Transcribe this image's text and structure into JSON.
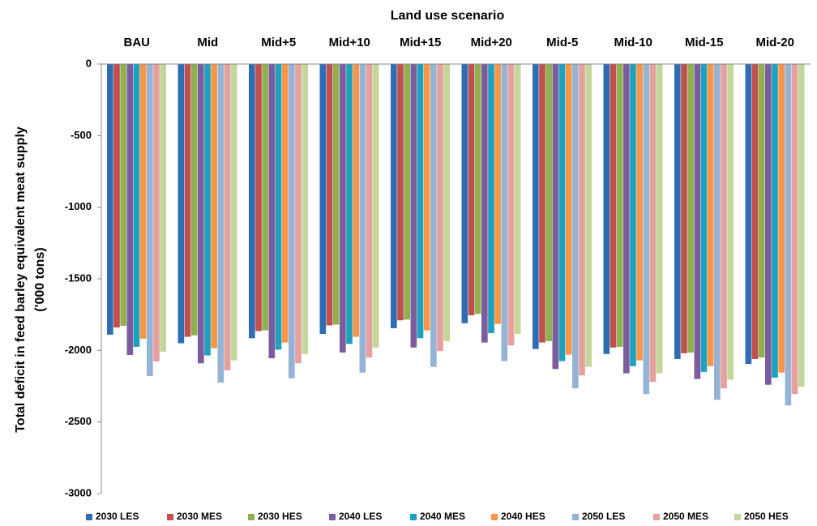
{
  "chart_data": {
    "type": "bar",
    "x_label": "Land use scenario",
    "y_label": [
      "Total deficit in feed barley equivalent meat supply",
      "('000 tons)"
    ],
    "categories": [
      "BAU",
      "Mid",
      "Mid+5",
      "Mid+10",
      "Mid+15",
      "Mid+20",
      "Mid-5",
      "Mid-10",
      "Mid-15",
      "Mid-20"
    ],
    "series": [
      {
        "name": "2030 LES",
        "color": "#2e6db4",
        "values": [
          -1890,
          -1950,
          -1915,
          -1885,
          -1845,
          -1810,
          -1990,
          -2025,
          -2060,
          -2095
        ]
      },
      {
        "name": "2030 MES",
        "color": "#c0504d",
        "values": [
          -1840,
          -1905,
          -1865,
          -1825,
          -1790,
          -1755,
          -1945,
          -1980,
          -2020,
          -2060
        ]
      },
      {
        "name": "2030 HES",
        "color": "#8fb04f",
        "values": [
          -1828,
          -1895,
          -1860,
          -1820,
          -1785,
          -1745,
          -1935,
          -1975,
          -2015,
          -2050
        ]
      },
      {
        "name": "2040 LES",
        "color": "#7b5c9e",
        "values": [
          -2032,
          -2090,
          -2055,
          -2015,
          -1980,
          -1945,
          -2130,
          -2160,
          -2200,
          -2240
        ]
      },
      {
        "name": "2040 MES",
        "color": "#1fa0bd",
        "values": [
          -1975,
          -2035,
          -1995,
          -1955,
          -1915,
          -1880,
          -2075,
          -2110,
          -2150,
          -2190
        ]
      },
      {
        "name": "2040 HES",
        "color": "#f79646",
        "values": [
          -1918,
          -1985,
          -1945,
          -1905,
          -1860,
          -1815,
          -2030,
          -2070,
          -2110,
          -2155
        ]
      },
      {
        "name": "2050 LES",
        "color": "#95b3d7",
        "values": [
          -2179,
          -2225,
          -2195,
          -2155,
          -2115,
          -2075,
          -2265,
          -2305,
          -2345,
          -2385
        ]
      },
      {
        "name": "2050 MES",
        "color": "#e6a09e",
        "values": [
          -2077,
          -2140,
          -2090,
          -2050,
          -2005,
          -1965,
          -2175,
          -2220,
          -2265,
          -2305
        ]
      },
      {
        "name": "2050 HES",
        "color": "#c4d79b",
        "values": [
          -2009,
          -2070,
          -2025,
          -1980,
          -1935,
          -1885,
          -2115,
          -2160,
          -2205,
          -2255
        ]
      }
    ],
    "ylim": [
      -3000,
      0
    ],
    "yticks": [
      0,
      -500,
      -1000,
      -1500,
      -2000,
      -2500,
      -3000
    ],
    "legend": "bottom"
  }
}
